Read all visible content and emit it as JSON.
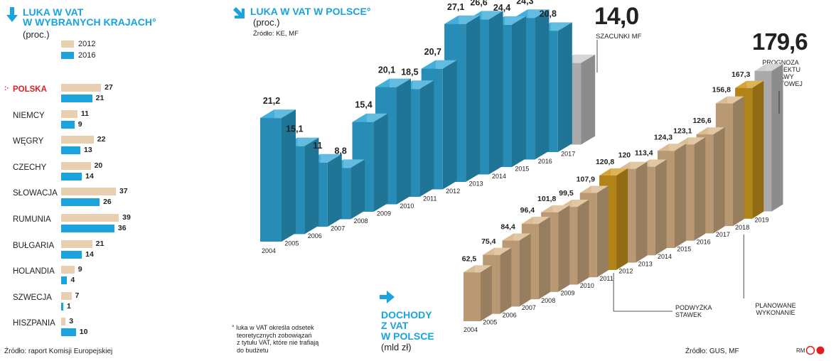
{
  "left": {
    "title_line1": "LUKA W VAT",
    "title_line2": "W WYBRANYCH KRAJACH°",
    "unit": "(proc.)",
    "legend": [
      "2012",
      "2016"
    ],
    "source": "Źródło: raport Komisji Europejskiej",
    "highlight_marker": ":·"
  },
  "middle": {
    "title": "LUKA W VAT W POLSCE°",
    "unit": "(proc.)",
    "source": "Źródło: KE, MF",
    "estimate_value": "14,0",
    "estimate_label": "SZACUNKI MF",
    "footnote": [
      "° luka w VAT określa odsetek",
      "teoretycznych zobowiązań",
      "z tytułu VAT, które nie trafiają",
      "do budżetu"
    ]
  },
  "right": {
    "title": [
      "DOCHODY",
      "Z VAT",
      "W POLSCE"
    ],
    "unit": "(mld zł)",
    "forecast_value": "179,6",
    "forecast_label": [
      "PROGNOZA",
      "Z PROJEKTU",
      "USTAWY",
      "BUDŻETOWEJ"
    ],
    "annotation_rate": [
      "PODWYŻKA",
      "STAWEK"
    ],
    "annotation_planned": [
      "PLANOWANE",
      "WYKONANIE"
    ],
    "source": "Źródło: GUS, MF",
    "logo": "RM"
  },
  "colors": {
    "y2012": "#e8cfb0",
    "y2016": "#1aa3dc",
    "highlight": "#e01e1e",
    "blue_front": "#2ea6d6",
    "tan_front": "#d8b487",
    "gold_front": "#d19a1c",
    "grey_front": "#c8c8c8"
  },
  "chart_data": [
    {
      "type": "bar",
      "title": "LUKA W VAT W WYBRANYCH KRAJACH°",
      "unit": "(proc.)",
      "categories": [
        "POLSKA",
        "NIEMCY",
        "WĘGRY",
        "CZECHY",
        "SŁOWACJA",
        "RUMUNIA",
        "BUŁGARIA",
        "HOLANDIA",
        "SZWECJA",
        "HISZPANIA"
      ],
      "series": [
        {
          "name": "2012",
          "values": [
            27,
            11,
            22,
            20,
            37,
            39,
            21,
            9,
            7,
            3
          ]
        },
        {
          "name": "2016",
          "values": [
            21,
            9,
            13,
            14,
            26,
            36,
            14,
            4,
            1,
            10
          ]
        }
      ],
      "orientation": "horizontal",
      "legend": "top-left"
    },
    {
      "type": "bar",
      "title": "LUKA W VAT W POLSCE°",
      "unit": "(proc.)",
      "categories": [
        "2004",
        "2005",
        "2006",
        "2007",
        "2008",
        "2009",
        "2010",
        "2011",
        "2012",
        "2013",
        "2014",
        "2015",
        "2016",
        "2017"
      ],
      "values": [
        21.2,
        15.1,
        11,
        8.8,
        15.4,
        20.1,
        18.5,
        20.7,
        27.1,
        26.6,
        24.4,
        24.3,
        20.8,
        14.0
      ],
      "labels": [
        "21,2",
        "15,1",
        "11",
        "8,8",
        "15,4",
        "20,1",
        "18,5",
        "20,7",
        "27,1",
        "26,6",
        "24,4",
        "24,3",
        "20,8",
        "14,0"
      ],
      "estimate_category": "2017"
    },
    {
      "type": "bar",
      "title": "DOCHODY Z VAT W POLSCE",
      "unit": "(mld zł)",
      "categories": [
        "2004",
        "2005",
        "2006",
        "2007",
        "2008",
        "2009",
        "2010",
        "2011",
        "2012",
        "2013",
        "2014",
        "2015",
        "2016",
        "2017",
        "2018",
        "2019"
      ],
      "values": [
        62.5,
        75.4,
        84.4,
        96.4,
        101.8,
        99.5,
        107.9,
        120.8,
        120,
        113.4,
        124.3,
        123.1,
        126.6,
        156.8,
        167.3,
        179.6
      ],
      "labels": [
        "62,5",
        "75,4",
        "84,4",
        "96,4",
        "101,8",
        "99,5",
        "107,9",
        "120,8",
        "120",
        "113,4",
        "124,3",
        "123,1",
        "126,6",
        "156,8",
        "167,3",
        "179,6"
      ],
      "rate_increase_categories": [
        "2011",
        "2018"
      ],
      "forecast_category": "2019"
    }
  ]
}
